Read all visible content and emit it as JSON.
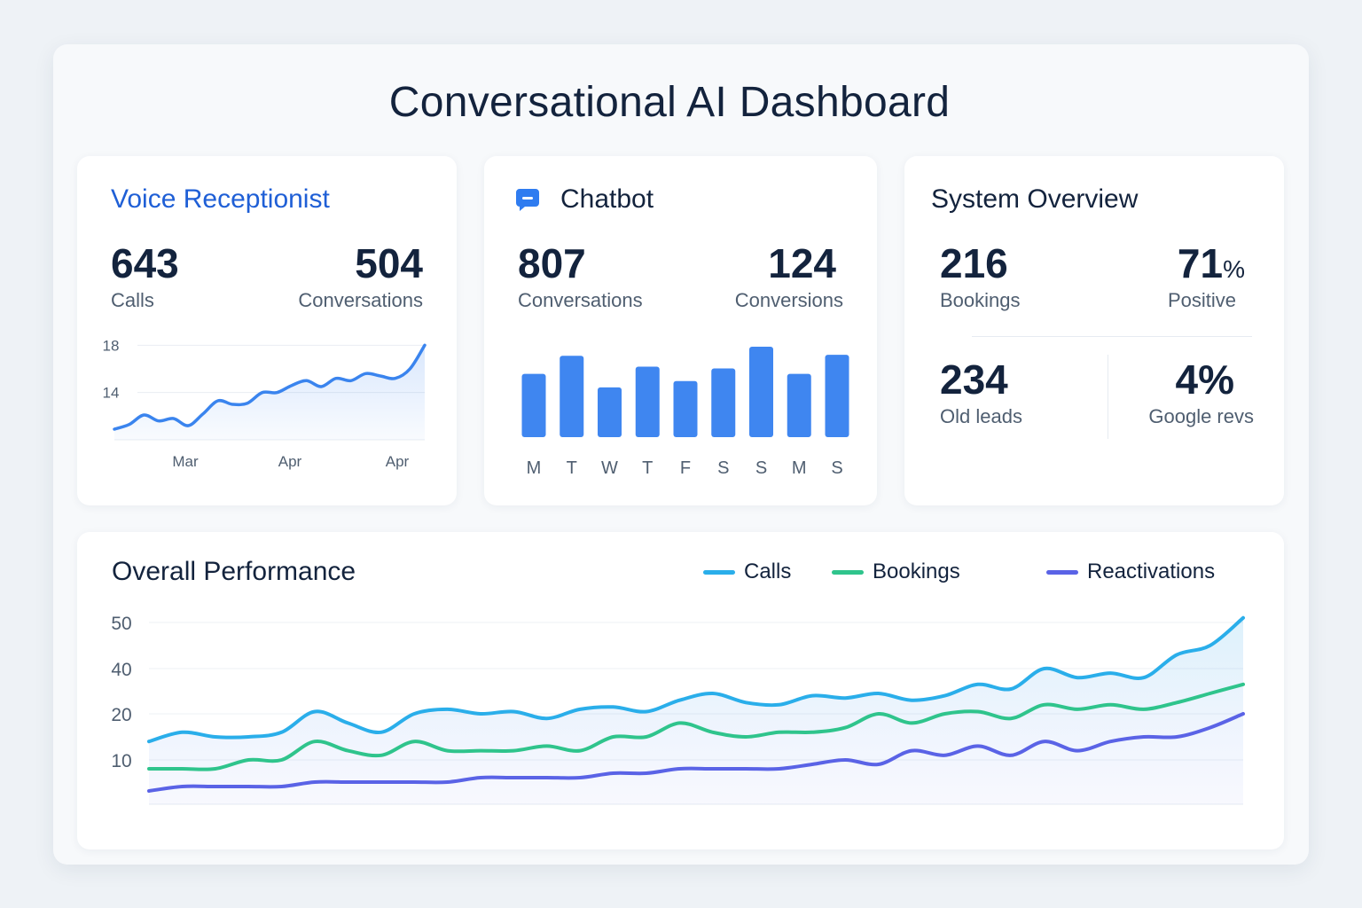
{
  "title": "Conversational AI Dashboard",
  "voice": {
    "title": "Voice Receptionist",
    "calls_value": "643",
    "calls_label": "Calls",
    "conv_value": "504",
    "conv_label": "Conversations"
  },
  "chatbot": {
    "title": "Chatbot",
    "icon": "chat-bubble-icon",
    "conv_value": "807",
    "conv_label": "Conversations",
    "convr_value": "124",
    "convr_label": "Conversions"
  },
  "system": {
    "title": "System Overview",
    "bookings_value": "216",
    "bookings_label": "Bookings",
    "positive_value": "71",
    "positive_unit": "%",
    "positive_label": "Positive",
    "old_leads_value": "234",
    "old_leads_label": "Old leads",
    "google_value": "4%",
    "google_label": "Google revs"
  },
  "performance": {
    "title": "Overall Performance"
  },
  "colors": {
    "accent": "#1f5fd6",
    "bar": "#3f86f0",
    "calls": "#2aaeea",
    "bookings": "#2fc48c",
    "reactivations": "#5a63e6"
  },
  "chart_data": [
    {
      "type": "area",
      "title": "Voice Receptionist",
      "x_tick_labels": [
        "Mar",
        "Apr",
        "Apr"
      ],
      "y_ticks": [
        14,
        18
      ],
      "ylim": [
        10,
        19
      ],
      "values": [
        10.9,
        11.3,
        12.1,
        11.6,
        11.8,
        11.2,
        12.2,
        13.3,
        13.0,
        13.1,
        14.0,
        14.0,
        14.6,
        15.0,
        14.5,
        15.2,
        15.0,
        15.6,
        15.4,
        15.2,
        16.0,
        18.0
      ]
    },
    {
      "type": "bar",
      "title": "Chatbot",
      "categories": [
        "M",
        "T",
        "W",
        "T",
        "F",
        "S",
        "S",
        "M",
        "S"
      ],
      "values": [
        70,
        90,
        55,
        78,
        62,
        76,
        100,
        70,
        91
      ],
      "ylim": [
        0,
        100
      ]
    },
    {
      "type": "line",
      "title": "Overall Performance",
      "y_ticks": [
        10,
        20,
        40,
        50
      ],
      "ylim": [
        0,
        52
      ],
      "legend": "top-right",
      "series": [
        {
          "name": "Calls",
          "values": [
            14,
            16,
            15,
            15,
            16,
            21,
            18,
            16,
            20,
            22,
            20,
            21,
            19,
            22,
            23,
            21,
            26,
            29,
            25,
            24,
            28,
            27,
            29,
            26,
            28,
            33,
            31,
            40,
            36,
            38,
            36,
            43,
            45,
            51
          ]
        },
        {
          "name": "Bookings",
          "values": [
            8,
            8,
            8,
            10,
            10,
            14,
            12,
            11,
            14,
            12,
            12,
            12,
            13,
            12,
            15,
            15,
            18,
            16,
            15,
            16,
            16,
            17,
            20,
            18,
            20,
            21,
            19,
            24,
            22,
            24,
            22,
            25,
            29,
            33
          ]
        },
        {
          "name": "Reactivations",
          "values": [
            3,
            4,
            4,
            4,
            4,
            5,
            5,
            5,
            5,
            5,
            6,
            6,
            6,
            6,
            7,
            7,
            8,
            8,
            8,
            8,
            9,
            10,
            9,
            12,
            11,
            13,
            11,
            14,
            12,
            14,
            15,
            15,
            17,
            20
          ]
        }
      ]
    }
  ]
}
